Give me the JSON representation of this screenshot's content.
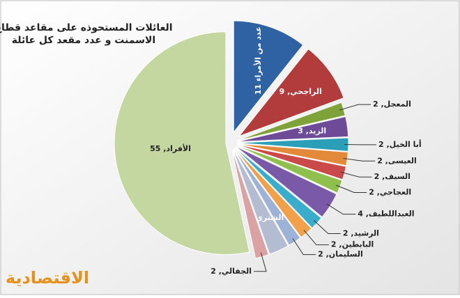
{
  "chart_data": {
    "type": "pie",
    "title": [
      "العائلات المستحوذه على مقاعد قطاع",
      "الاسمنت و عدد مقعد كل عائلة"
    ],
    "logo": "الاقتصادية",
    "categories": [
      "عدد من الأمراء",
      "الراجحي",
      "المعجل",
      "الزيد",
      "أبا الخيل",
      "العيسى",
      "السيف",
      "العجاجي",
      "العبداللطيف",
      "الرشيد",
      "البابطين",
      "السليمان",
      "الشثري",
      "الجفالي",
      "الأفراد"
    ],
    "values": [
      11,
      9,
      2,
      3,
      2,
      2,
      2,
      2,
      4,
      2,
      2,
      2,
      3,
      2,
      55
    ],
    "value_labels": [
      "عدد من الأمراء 11",
      "الراجحي, 9",
      "المعجل, 2",
      "الزيد, 3",
      "أبا الخيل, 2",
      "العيسى, 2",
      "السيف, 2",
      "العجاجي, 2",
      "العبداللطيف, 4",
      "الرشيد, 2",
      "البابطين, 2",
      "السليمان, 2",
      "الشثري, 3",
      "الجفالي, 2",
      "الأفراد, 55"
    ],
    "colors": [
      "#2e62a3",
      "#b23b3b",
      "#7fa33a",
      "#6d4b97",
      "#2a9fb7",
      "#e2893a",
      "#c94a48",
      "#8fbf4c",
      "#7a5aa8",
      "#3aaccc",
      "#f2a04a",
      "#9cb2d6",
      "#b4bcd2",
      "#daa2a2",
      "#c4d7a1"
    ]
  }
}
